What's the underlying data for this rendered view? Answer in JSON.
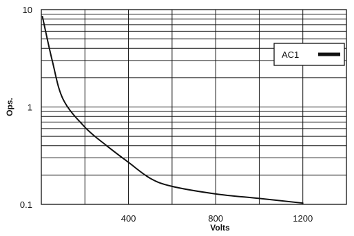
{
  "chart_data": {
    "type": "line",
    "title": "",
    "xlabel": "Volts",
    "ylabel": "Ops.",
    "xlim": [
      0,
      1400
    ],
    "ylim": [
      0.1,
      10
    ],
    "yscale": "log",
    "grid": true,
    "legend_position": "top-right",
    "x_tick_labels": [
      "400",
      "800",
      "1200"
    ],
    "x_tick_values": [
      400,
      800,
      1200
    ],
    "y_tick_labels": [
      "10",
      "1",
      "0.1"
    ],
    "y_tick_values": [
      10,
      1,
      0.1
    ],
    "series": [
      {
        "name": "AC1",
        "color": "#111111",
        "x": [
          5,
          50,
          100,
          200,
          300,
          400,
          500,
          600,
          800,
          1000,
          1200
        ],
        "y": [
          8.5,
          3.0,
          1.2,
          0.62,
          0.4,
          0.27,
          0.185,
          0.153,
          0.128,
          0.115,
          0.103
        ]
      }
    ]
  }
}
